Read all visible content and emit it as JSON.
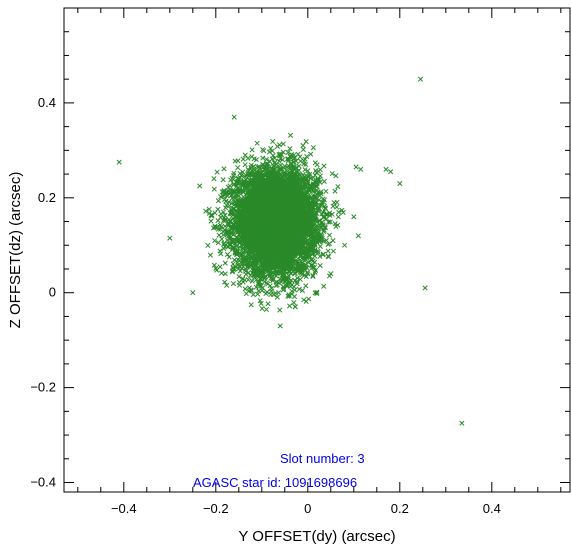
{
  "chart_data": {
    "type": "scatter",
    "xlabel": "Y OFFSET(dy) (arcsec)",
    "ylabel": "Z OFFSET(dz) (arcsec)",
    "xlim": [
      -0.53,
      0.57
    ],
    "ylim": [
      -0.42,
      0.6
    ],
    "xticks": [
      -0.4,
      -0.2,
      0,
      0.2,
      0.4
    ],
    "xtick_labels": [
      "−0.4",
      "−0.2",
      "0",
      "0.2",
      "0.4"
    ],
    "yticks": [
      -0.4,
      -0.2,
      0,
      0.2,
      0.4
    ],
    "ytick_labels": [
      "−0.4",
      "−0.2",
      "0",
      "0.2",
      "0.4"
    ],
    "grid": false,
    "marker": "x",
    "color": "#2a8a2a",
    "annotation_color": "#0000ee",
    "annotations": [
      "Slot number: 3",
      "AGASC star id: 1091698696"
    ],
    "cluster": {
      "center_x": -0.07,
      "center_y": 0.15,
      "std_x": 0.045,
      "std_y": 0.055,
      "n_points": 6000
    },
    "points": [
      {
        "x": 0.245,
        "y": 0.45
      },
      {
        "x": -0.41,
        "y": 0.275
      },
      {
        "x": -0.3,
        "y": 0.115
      },
      {
        "x": 0.255,
        "y": 0.01
      },
      {
        "x": 0.335,
        "y": -0.275
      },
      {
        "x": 0.2,
        "y": 0.23
      },
      {
        "x": 0.17,
        "y": 0.26
      },
      {
        "x": 0.18,
        "y": 0.255
      },
      {
        "x": 0.105,
        "y": 0.265
      },
      {
        "x": 0.115,
        "y": 0.26
      },
      {
        "x": 0.1,
        "y": 0.16
      },
      {
        "x": 0.11,
        "y": 0.12
      },
      {
        "x": 0.08,
        "y": 0.1
      },
      {
        "x": -0.16,
        "y": 0.37
      },
      {
        "x": -0.06,
        "y": -0.07
      },
      {
        "x": -0.25,
        "y": 0.0
      },
      {
        "x": -0.235,
        "y": 0.225
      },
      {
        "x": 0.05,
        "y": 0.04
      }
    ]
  }
}
